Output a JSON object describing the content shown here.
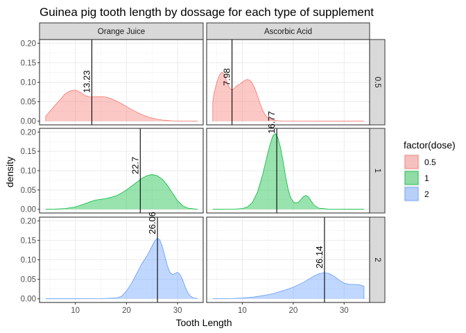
{
  "chart_data": {
    "type": "area",
    "subtype": "faceted density plot",
    "title": "Guinea pig tooth length by dossage for each type of supplement",
    "xlabel": "Tooth Length",
    "ylabel": "density",
    "xlim": [
      3,
      35
    ],
    "ylim": [
      -0.0095,
      0.2095
    ],
    "x_ticks": [
      10,
      20,
      30
    ],
    "y_ticks": [
      0.0,
      0.05,
      0.1,
      0.15,
      0.2
    ],
    "y_tick_labels": [
      "0.00",
      "0.05",
      "0.10",
      "0.15",
      "0.20"
    ],
    "grid": true,
    "facet_columns": [
      "Orange Juice",
      "Ascorbic Acid"
    ],
    "facet_rows": [
      "0.5",
      "1",
      "2"
    ],
    "legend": {
      "title": "factor(dose)",
      "position": "right",
      "entries": [
        {
          "label": "0.5",
          "fill": "#f8766d",
          "line": "#f8766d"
        },
        {
          "label": "1",
          "fill": "#00ba38",
          "line": "#00ba38"
        },
        {
          "label": "2",
          "fill": "#619cff",
          "line": "#619cff"
        }
      ]
    },
    "panels": [
      {
        "column": "Orange Juice",
        "row": "0.5",
        "color": "#f8766d",
        "mean": 13.23,
        "mean_label": "13.23",
        "x": [
          4.2,
          5,
          6,
          7,
          8,
          9,
          10,
          11,
          12,
          13,
          14,
          15,
          16,
          17,
          18,
          19,
          20,
          21,
          22,
          23,
          24,
          25,
          26,
          27,
          28,
          29,
          30,
          31,
          32,
          33.9
        ],
        "y": [
          0.012,
          0.025,
          0.04,
          0.055,
          0.07,
          0.078,
          0.08,
          0.074,
          0.065,
          0.062,
          0.063,
          0.063,
          0.062,
          0.058,
          0.052,
          0.045,
          0.038,
          0.03,
          0.023,
          0.017,
          0.012,
          0.008,
          0.005,
          0.003,
          0.002,
          0.001,
          0.0005,
          0.0002,
          0.0001,
          0.0
        ]
      },
      {
        "column": "Ascorbic Acid",
        "row": "0.5",
        "color": "#f8766d",
        "mean": 7.98,
        "mean_label": "7.98",
        "x": [
          4.2,
          4.5,
          5,
          5.5,
          6,
          6.5,
          7,
          7.5,
          8,
          8.5,
          9,
          9.5,
          10,
          10.5,
          11,
          11.5,
          12,
          12.5,
          13,
          13.5,
          14,
          14.5,
          15,
          16,
          17,
          18,
          20,
          25,
          30,
          33.9
        ],
        "y": [
          0.05,
          0.075,
          0.1,
          0.118,
          0.126,
          0.12,
          0.1,
          0.085,
          0.08,
          0.085,
          0.092,
          0.095,
          0.1,
          0.105,
          0.107,
          0.105,
          0.097,
          0.083,
          0.065,
          0.045,
          0.028,
          0.016,
          0.008,
          0.003,
          0.001,
          0.0005,
          0.0001,
          0.0,
          0.0,
          0.0
        ]
      },
      {
        "column": "Orange Juice",
        "row": "1",
        "color": "#00ba38",
        "mean": 22.7,
        "mean_label": "22.7",
        "x": [
          4.2,
          6,
          8,
          10,
          12,
          13,
          14,
          15,
          16,
          17,
          18,
          19,
          20,
          21,
          22,
          23,
          24,
          25,
          26,
          27,
          28,
          29,
          30,
          31,
          32,
          33.9
        ],
        "y": [
          0.0,
          0.0005,
          0.002,
          0.006,
          0.015,
          0.02,
          0.024,
          0.026,
          0.028,
          0.031,
          0.035,
          0.042,
          0.05,
          0.06,
          0.07,
          0.08,
          0.087,
          0.09,
          0.087,
          0.078,
          0.062,
          0.042,
          0.022,
          0.009,
          0.003,
          0.0
        ]
      },
      {
        "column": "Ascorbic Acid",
        "row": "1",
        "color": "#00ba38",
        "mean": 16.77,
        "mean_label": "16.77",
        "x": [
          4.2,
          8,
          10,
          11,
          12,
          13,
          14,
          15,
          15.5,
          16,
          16.5,
          17,
          17.5,
          18,
          18.5,
          19,
          19.5,
          20,
          20.5,
          21,
          21.5,
          22,
          22.5,
          23,
          23.5,
          24,
          25,
          27,
          30,
          33.9
        ],
        "y": [
          0.0,
          0.0002,
          0.002,
          0.006,
          0.018,
          0.045,
          0.09,
          0.145,
          0.17,
          0.19,
          0.196,
          0.185,
          0.16,
          0.125,
          0.085,
          0.052,
          0.03,
          0.02,
          0.016,
          0.018,
          0.025,
          0.033,
          0.036,
          0.032,
          0.022,
          0.012,
          0.003,
          0.0003,
          0.0,
          0.0
        ]
      },
      {
        "column": "Orange Juice",
        "row": "2",
        "color": "#619cff",
        "mean": 26.06,
        "mean_label": "26.06",
        "x": [
          4.2,
          10,
          15,
          18,
          19,
          20,
          21,
          22,
          23,
          24,
          24.5,
          25,
          25.5,
          26,
          26.5,
          27,
          27.5,
          28,
          28.5,
          29,
          29.5,
          30,
          30.5,
          31,
          31.5,
          32,
          32.5,
          33,
          33.9
        ],
        "y": [
          0.0,
          0.0,
          0.0005,
          0.002,
          0.006,
          0.02,
          0.04,
          0.065,
          0.09,
          0.11,
          0.122,
          0.135,
          0.148,
          0.155,
          0.152,
          0.135,
          0.11,
          0.085,
          0.068,
          0.062,
          0.065,
          0.068,
          0.062,
          0.048,
          0.03,
          0.016,
          0.007,
          0.003,
          0.0
        ]
      },
      {
        "column": "Ascorbic Acid",
        "row": "2",
        "color": "#619cff",
        "mean": 26.14,
        "mean_label": "26.14",
        "x": [
          4.2,
          6,
          8,
          10,
          12,
          14,
          16,
          17,
          18,
          19,
          20,
          21,
          22,
          23,
          24,
          25,
          26,
          27,
          28,
          29,
          30,
          31,
          32,
          33,
          33.9
        ],
        "y": [
          0.0,
          0.0003,
          0.0008,
          0.002,
          0.004,
          0.008,
          0.013,
          0.017,
          0.021,
          0.025,
          0.03,
          0.036,
          0.042,
          0.05,
          0.058,
          0.064,
          0.067,
          0.065,
          0.058,
          0.048,
          0.04,
          0.037,
          0.037,
          0.036,
          0.032
        ]
      }
    ]
  }
}
